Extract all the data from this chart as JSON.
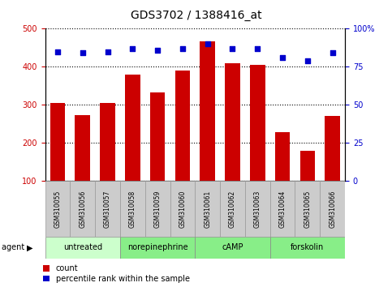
{
  "title": "GDS3702 / 1388416_at",
  "samples": [
    "GSM310055",
    "GSM310056",
    "GSM310057",
    "GSM310058",
    "GSM310059",
    "GSM310060",
    "GSM310061",
    "GSM310062",
    "GSM310063",
    "GSM310064",
    "GSM310065",
    "GSM310066"
  ],
  "counts": [
    305,
    272,
    305,
    380,
    333,
    390,
    467,
    410,
    404,
    228,
    178,
    271
  ],
  "percentiles": [
    85,
    84,
    85,
    87,
    86,
    87,
    90,
    87,
    87,
    81,
    79,
    84
  ],
  "agents": [
    {
      "label": "untreated",
      "start": 0,
      "end": 3,
      "color": "#ccffcc"
    },
    {
      "label": "norepinephrine",
      "start": 3,
      "end": 6,
      "color": "#88ee88"
    },
    {
      "label": "cAMP",
      "start": 6,
      "end": 9,
      "color": "#88ee88"
    },
    {
      "label": "forskolin",
      "start": 9,
      "end": 12,
      "color": "#88ee88"
    }
  ],
  "ylim_left": [
    100,
    500
  ],
  "ylim_right": [
    0,
    100
  ],
  "bar_color": "#cc0000",
  "dot_color": "#0000cc",
  "grid_color": "#000000",
  "bg_plot": "#ffffff",
  "bg_sample_row": "#cccccc",
  "bg_agent_untreated": "#ccffcc",
  "bg_agent_other": "#88ee88",
  "title_fontsize": 10,
  "tick_fontsize": 7,
  "sample_fontsize": 5.5,
  "agent_fontsize": 7,
  "legend_fontsize": 7
}
